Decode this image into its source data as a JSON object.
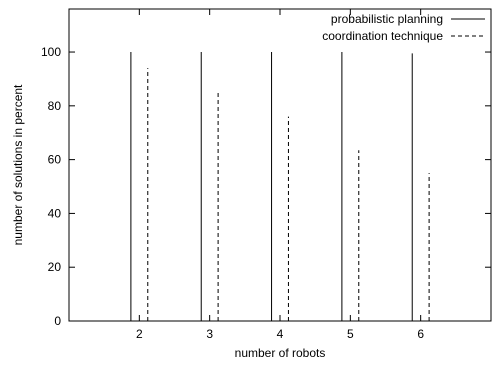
{
  "chart_data": {
    "type": "bar",
    "xlabel": "number of robots",
    "ylabel": "number of solutions in percent",
    "xlim": [
      1,
      7
    ],
    "ylim": [
      0,
      116
    ],
    "x_ticks": [
      2,
      3,
      4,
      5,
      6
    ],
    "y_ticks": [
      0,
      20,
      40,
      60,
      80,
      100
    ],
    "legend_position": "top-right",
    "grid": false,
    "series": [
      {
        "name": "probabilistic planning",
        "style": "solid",
        "x": [
          1.88,
          2.88,
          3.88,
          4.88,
          5.88
        ],
        "values": [
          100,
          100,
          100,
          100,
          99.5
        ]
      },
      {
        "name": "coordination technique",
        "style": "dashed",
        "x": [
          2.12,
          3.12,
          4.12,
          5.12,
          6.12
        ],
        "values": [
          94,
          85.5,
          76,
          63.5,
          55
        ]
      }
    ]
  }
}
